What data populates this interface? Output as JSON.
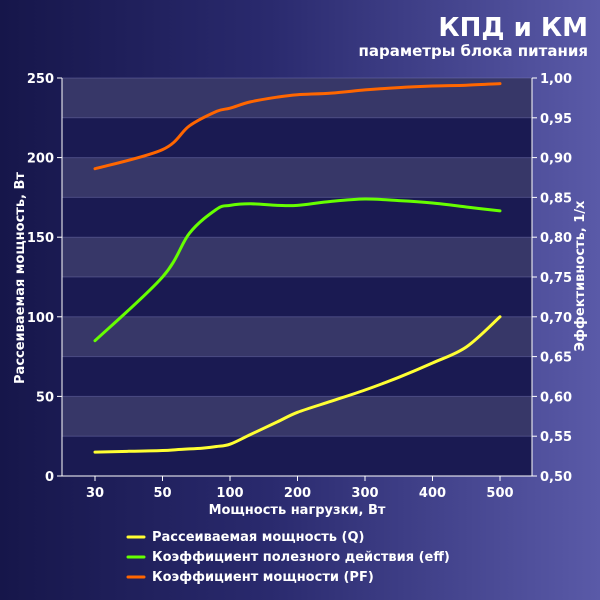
{
  "chart_data": {
    "type": "line",
    "title": "КПД и КМ",
    "subtitle": "параметры блока питания",
    "xlabel": "Мощность нагрузки, Вт",
    "ylabel_left": "Рассеиваемая мощность, Вт",
    "ylabel_right": "Эффективность, 1/x",
    "categories": [
      "30",
      "50",
      "100",
      "200",
      "300",
      "400",
      "500"
    ],
    "y_left": {
      "lim": [
        0,
        250
      ],
      "ticks": [
        0,
        50,
        100,
        150,
        200,
        250
      ],
      "tick_labels": [
        "0",
        "50",
        "100",
        "150",
        "200",
        "250"
      ]
    },
    "y_right": {
      "lim": [
        0.5,
        1.0
      ],
      "ticks": [
        0.5,
        0.55,
        0.6,
        0.65,
        0.7,
        0.75,
        0.8,
        0.85,
        0.9,
        0.95,
        1.0
      ],
      "tick_labels": [
        "0,50",
        "0,55",
        "0,60",
        "0,65",
        "0,70",
        "0,75",
        "0,80",
        "0,85",
        "0,90",
        "0,95",
        "1,00"
      ]
    },
    "series": [
      {
        "name": "Рассеиваемая мощность (Q)",
        "axis": "left",
        "color": "#ffff33",
        "x": [
          30,
          40,
          50,
          60,
          70,
          80,
          90,
          100,
          130,
          170,
          200,
          250,
          300,
          350,
          400,
          450,
          500
        ],
        "values": [
          15,
          15.5,
          16,
          16.5,
          17,
          17.5,
          18.5,
          20,
          26,
          34,
          40,
          47,
          54,
          62,
          71,
          81,
          100
        ]
      },
      {
        "name": "Коэффициент полезного действия (eff)",
        "axis": "right",
        "color": "#66ff00",
        "x": [
          30,
          50,
          70,
          90,
          100,
          130,
          170,
          200,
          250,
          300,
          350,
          400,
          450,
          500
        ],
        "values": [
          0.67,
          0.75,
          0.805,
          0.835,
          0.84,
          0.842,
          0.84,
          0.84,
          0.845,
          0.848,
          0.846,
          0.843,
          0.838,
          0.833
        ]
      },
      {
        "name": "Коэффициент мощности (PF)",
        "axis": "right",
        "color": "#ff6600",
        "x": [
          30,
          50,
          70,
          90,
          100,
          130,
          170,
          200,
          250,
          300,
          350,
          400,
          450,
          500
        ],
        "values": [
          0.886,
          0.91,
          0.94,
          0.958,
          0.962,
          0.97,
          0.976,
          0.979,
          0.981,
          0.985,
          0.988,
          0.99,
          0.991,
          0.993
        ]
      }
    ],
    "grid": "horizontal bands",
    "legend_position": "bottom"
  }
}
